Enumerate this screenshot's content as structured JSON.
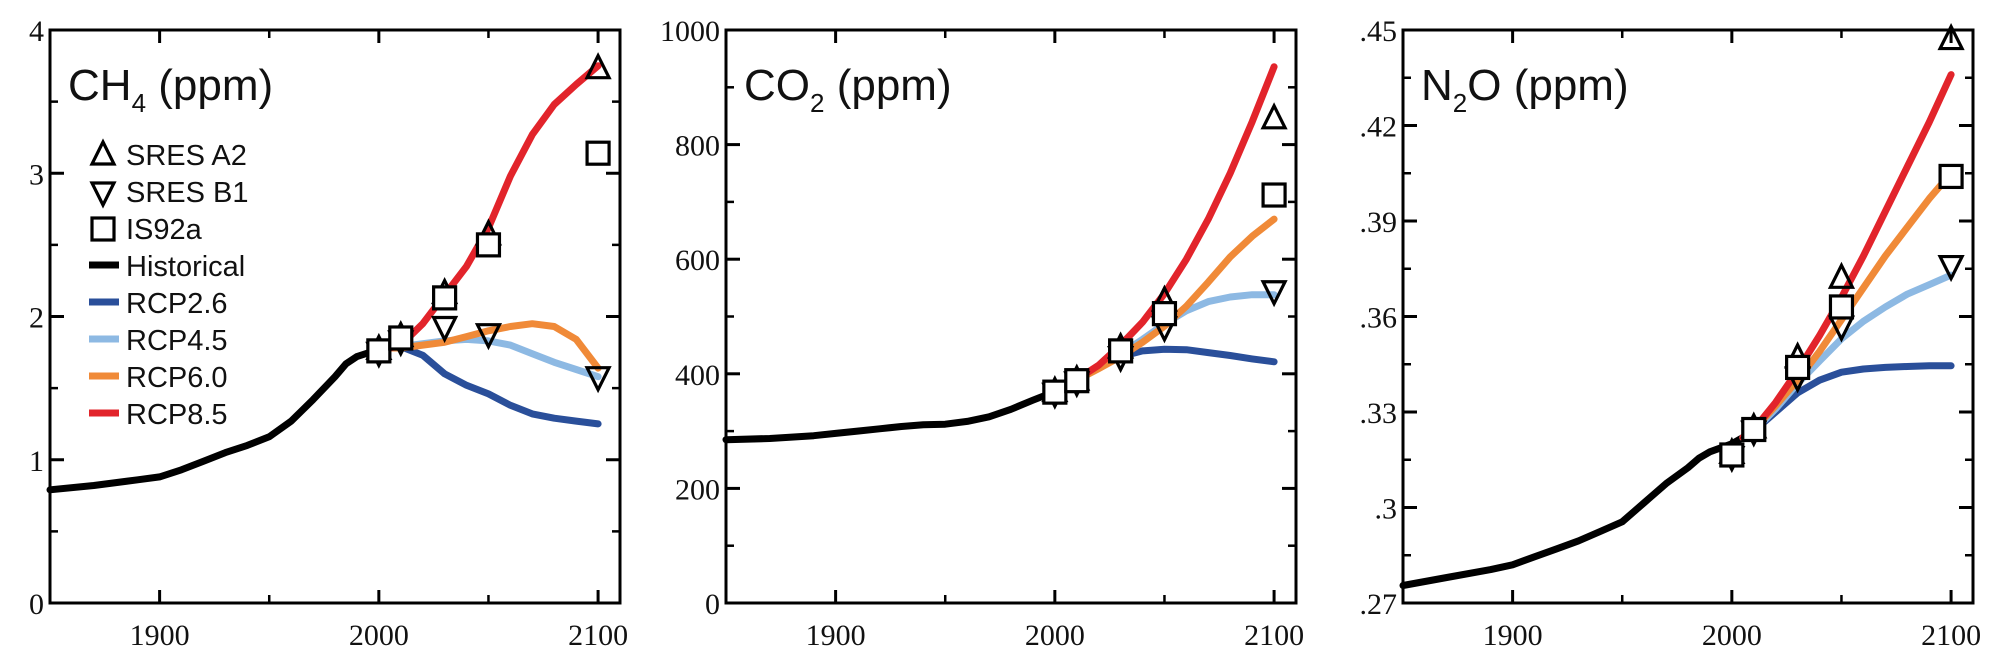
{
  "colors": {
    "Historical": "#000000",
    "RCP2.6": "#2a4f9a",
    "RCP4.5": "#8db9e3",
    "RCP6.0": "#f08a38",
    "RCP8.5": "#e2242b"
  },
  "legend": [
    {
      "label": "SRES A2",
      "kind": "marker",
      "marker": "triangle-up"
    },
    {
      "label": "SRES B1",
      "kind": "marker",
      "marker": "triangle-down"
    },
    {
      "label": "IS92a",
      "kind": "marker",
      "marker": "square"
    },
    {
      "label": "Historical",
      "kind": "line",
      "color": "#000000"
    },
    {
      "label": "RCP2.6",
      "kind": "line",
      "color": "#2a4f9a"
    },
    {
      "label": "RCP4.5",
      "kind": "line",
      "color": "#8db9e3"
    },
    {
      "label": "RCP6.0",
      "kind": "line",
      "color": "#f08a38"
    },
    {
      "label": "RCP8.5",
      "kind": "line",
      "color": "#e2242b"
    }
  ],
  "chart_data": [
    {
      "type": "line",
      "title_main": "CH",
      "title_sub": "4",
      "title_unit": " (ppm)",
      "xlim": [
        1850,
        2110
      ],
      "ylim": [
        0,
        4
      ],
      "xticks": [
        1900,
        2000,
        2100
      ],
      "xtick_labels": [
        "1900",
        "2000",
        "2100"
      ],
      "yticks": [
        0,
        1,
        2,
        3,
        4
      ],
      "ytick_labels": [
        "0",
        "1",
        "2",
        "3",
        "4"
      ],
      "series": [
        {
          "name": "Historical",
          "x": [
            1850,
            1870,
            1890,
            1900,
            1910,
            1920,
            1930,
            1940,
            1950,
            1960,
            1970,
            1980,
            1985,
            1990,
            2000,
            2005
          ],
          "y": [
            0.79,
            0.82,
            0.86,
            0.88,
            0.93,
            0.99,
            1.05,
            1.1,
            1.16,
            1.27,
            1.42,
            1.58,
            1.67,
            1.72,
            1.77,
            1.78
          ]
        },
        {
          "name": "RCP2.6",
          "x": [
            2005,
            2010,
            2020,
            2030,
            2040,
            2050,
            2060,
            2070,
            2080,
            2090,
            2100
          ],
          "y": [
            1.78,
            1.79,
            1.73,
            1.6,
            1.52,
            1.46,
            1.38,
            1.32,
            1.29,
            1.27,
            1.25
          ]
        },
        {
          "name": "RCP4.5",
          "x": [
            2005,
            2010,
            2020,
            2030,
            2040,
            2050,
            2060,
            2070,
            2080,
            2090,
            2100
          ],
          "y": [
            1.78,
            1.79,
            1.81,
            1.83,
            1.84,
            1.83,
            1.8,
            1.74,
            1.68,
            1.63,
            1.58
          ]
        },
        {
          "name": "RCP6.0",
          "x": [
            2005,
            2010,
            2020,
            2030,
            2040,
            2050,
            2060,
            2070,
            2080,
            2090,
            2100
          ],
          "y": [
            1.78,
            1.78,
            1.8,
            1.82,
            1.86,
            1.9,
            1.93,
            1.95,
            1.93,
            1.84,
            1.64
          ]
        },
        {
          "name": "RCP8.5",
          "x": [
            2005,
            2010,
            2020,
            2030,
            2040,
            2050,
            2060,
            2070,
            2080,
            2090,
            2100
          ],
          "y": [
            1.78,
            1.8,
            1.95,
            2.15,
            2.35,
            2.62,
            2.98,
            3.27,
            3.48,
            3.62,
            3.75
          ]
        }
      ],
      "markers": [
        {
          "set": "SRES A2",
          "shape": "triangle-up",
          "points": [
            [
              2000,
              1.77
            ],
            [
              2010,
              1.86
            ],
            [
              2030,
              2.16
            ],
            [
              2050,
              2.57
            ],
            [
              2100,
              3.73
            ]
          ]
        },
        {
          "set": "SRES B1",
          "shape": "triangle-down",
          "points": [
            [
              2000,
              1.75
            ],
            [
              2010,
              1.83
            ],
            [
              2030,
              1.93
            ],
            [
              2050,
              1.88
            ],
            [
              2100,
              1.58
            ]
          ]
        },
        {
          "set": "IS92a",
          "shape": "square",
          "points": [
            [
              2000,
              1.76
            ],
            [
              2010,
              1.85
            ],
            [
              2030,
              2.13
            ],
            [
              2050,
              2.5
            ],
            [
              2100,
              3.14
            ]
          ]
        }
      ]
    },
    {
      "type": "line",
      "title_main": "CO",
      "title_sub": "2",
      "title_unit": " (ppm)",
      "xlim": [
        1850,
        2110
      ],
      "ylim": [
        0,
        1000
      ],
      "xticks": [
        1900,
        2000,
        2100
      ],
      "xtick_labels": [
        "1900",
        "2000",
        "2100"
      ],
      "yticks": [
        0,
        200,
        400,
        600,
        800,
        1000
      ],
      "ytick_labels": [
        "0",
        "200",
        "400",
        "600",
        "800",
        "1000"
      ],
      "series": [
        {
          "name": "Historical",
          "x": [
            1850,
            1870,
            1890,
            1900,
            1910,
            1920,
            1930,
            1940,
            1950,
            1960,
            1970,
            1980,
            1990,
            2000,
            2005
          ],
          "y": [
            285,
            287,
            292,
            296,
            300,
            304,
            308,
            311,
            312,
            317,
            325,
            338,
            354,
            369,
            378
          ]
        },
        {
          "name": "RCP2.6",
          "x": [
            2005,
            2010,
            2020,
            2030,
            2040,
            2050,
            2060,
            2070,
            2080,
            2090,
            2100
          ],
          "y": [
            378,
            389,
            412,
            430,
            440,
            443,
            442,
            437,
            432,
            426,
            421
          ]
        },
        {
          "name": "RCP4.5",
          "x": [
            2005,
            2010,
            2020,
            2030,
            2040,
            2050,
            2060,
            2070,
            2080,
            2090,
            2100
          ],
          "y": [
            378,
            389,
            411,
            435,
            460,
            487,
            510,
            526,
            534,
            538,
            538
          ]
        },
        {
          "name": "RCP6.0",
          "x": [
            2005,
            2010,
            2020,
            2030,
            2040,
            2050,
            2060,
            2070,
            2080,
            2090,
            2100
          ],
          "y": [
            378,
            389,
            409,
            430,
            455,
            483,
            518,
            560,
            604,
            640,
            670
          ]
        },
        {
          "name": "RCP8.5",
          "x": [
            2005,
            2010,
            2020,
            2030,
            2040,
            2050,
            2060,
            2070,
            2080,
            2090,
            2100
          ],
          "y": [
            378,
            390,
            415,
            450,
            490,
            540,
            600,
            670,
            750,
            840,
            936
          ]
        }
      ],
      "markers": [
        {
          "set": "SRES A2",
          "shape": "triangle-up",
          "points": [
            [
              2000,
              369
            ],
            [
              2010,
              389
            ],
            [
              2030,
              445
            ],
            [
              2050,
              527
            ],
            [
              2100,
              845
            ]
          ]
        },
        {
          "set": "SRES B1",
          "shape": "triangle-down",
          "points": [
            [
              2000,
              366
            ],
            [
              2010,
              386
            ],
            [
              2030,
              430
            ],
            [
              2050,
              482
            ],
            [
              2100,
              545
            ]
          ]
        },
        {
          "set": "IS92a",
          "shape": "square",
          "points": [
            [
              2000,
              368
            ],
            [
              2010,
              388
            ],
            [
              2030,
              440
            ],
            [
              2050,
              505
            ],
            [
              2100,
              712
            ]
          ]
        }
      ]
    },
    {
      "type": "line",
      "title_main": "N",
      "title_sub": "2",
      "title_unit": "O (ppm)",
      "xlim": [
        1850,
        2110
      ],
      "ylim": [
        0.27,
        0.45
      ],
      "xticks": [
        1900,
        2000,
        2100
      ],
      "xtick_labels": [
        "1900",
        "2000",
        "2100"
      ],
      "yticks": [
        0.27,
        0.3,
        0.33,
        0.36,
        0.39,
        0.42,
        0.45
      ],
      "ytick_labels": [
        ".27",
        ".3",
        ".33",
        ".36",
        ".39",
        ".42",
        ".45"
      ],
      "series": [
        {
          "name": "Historical",
          "x": [
            1850,
            1870,
            1890,
            1900,
            1910,
            1920,
            1930,
            1940,
            1950,
            1960,
            1970,
            1980,
            1985,
            1990,
            2000,
            2005
          ],
          "y": [
            0.2755,
            0.278,
            0.2805,
            0.282,
            0.2845,
            0.287,
            0.2895,
            0.2925,
            0.2955,
            0.3015,
            0.3075,
            0.3125,
            0.3155,
            0.3175,
            0.32,
            0.322
          ]
        },
        {
          "name": "RCP2.6",
          "x": [
            2005,
            2010,
            2020,
            2030,
            2040,
            2050,
            2060,
            2070,
            2080,
            2090,
            2100
          ],
          "y": [
            0.322,
            0.324,
            0.33,
            0.336,
            0.34,
            0.3425,
            0.3435,
            0.344,
            0.3443,
            0.3445,
            0.3445
          ]
        },
        {
          "name": "RCP4.5",
          "x": [
            2005,
            2010,
            2020,
            2030,
            2040,
            2050,
            2060,
            2070,
            2080,
            2090,
            2100
          ],
          "y": [
            0.322,
            0.324,
            0.331,
            0.339,
            0.346,
            0.353,
            0.3585,
            0.363,
            0.367,
            0.37,
            0.373
          ]
        },
        {
          "name": "RCP6.0",
          "x": [
            2005,
            2010,
            2020,
            2030,
            2040,
            2050,
            2060,
            2070,
            2080,
            2090,
            2100
          ],
          "y": [
            0.322,
            0.3245,
            0.332,
            0.34,
            0.349,
            0.359,
            0.369,
            0.379,
            0.388,
            0.397,
            0.405
          ]
        },
        {
          "name": "RCP8.5",
          "x": [
            2005,
            2010,
            2020,
            2030,
            2040,
            2050,
            2060,
            2070,
            2080,
            2090,
            2100
          ],
          "y": [
            0.322,
            0.3245,
            0.333,
            0.343,
            0.354,
            0.366,
            0.379,
            0.393,
            0.407,
            0.421,
            0.436
          ]
        }
      ],
      "markers": [
        {
          "set": "SRES A2",
          "shape": "triangle-up",
          "points": [
            [
              2000,
              0.317
            ],
            [
              2010,
              0.325
            ],
            [
              2030,
              0.347
            ],
            [
              2050,
              0.372
            ],
            [
              2100,
              0.447
            ]
          ]
        },
        {
          "set": "SRES B1",
          "shape": "triangle-down",
          "points": [
            [
              2000,
              0.316
            ],
            [
              2010,
              0.324
            ],
            [
              2030,
              0.341
            ],
            [
              2050,
              0.357
            ],
            [
              2100,
              0.376
            ]
          ]
        },
        {
          "set": "IS92a",
          "shape": "square",
          "points": [
            [
              2000,
              0.3165
            ],
            [
              2010,
              0.3245
            ],
            [
              2030,
              0.344
            ],
            [
              2050,
              0.363
            ],
            [
              2100,
              0.404
            ]
          ]
        }
      ]
    }
  ]
}
